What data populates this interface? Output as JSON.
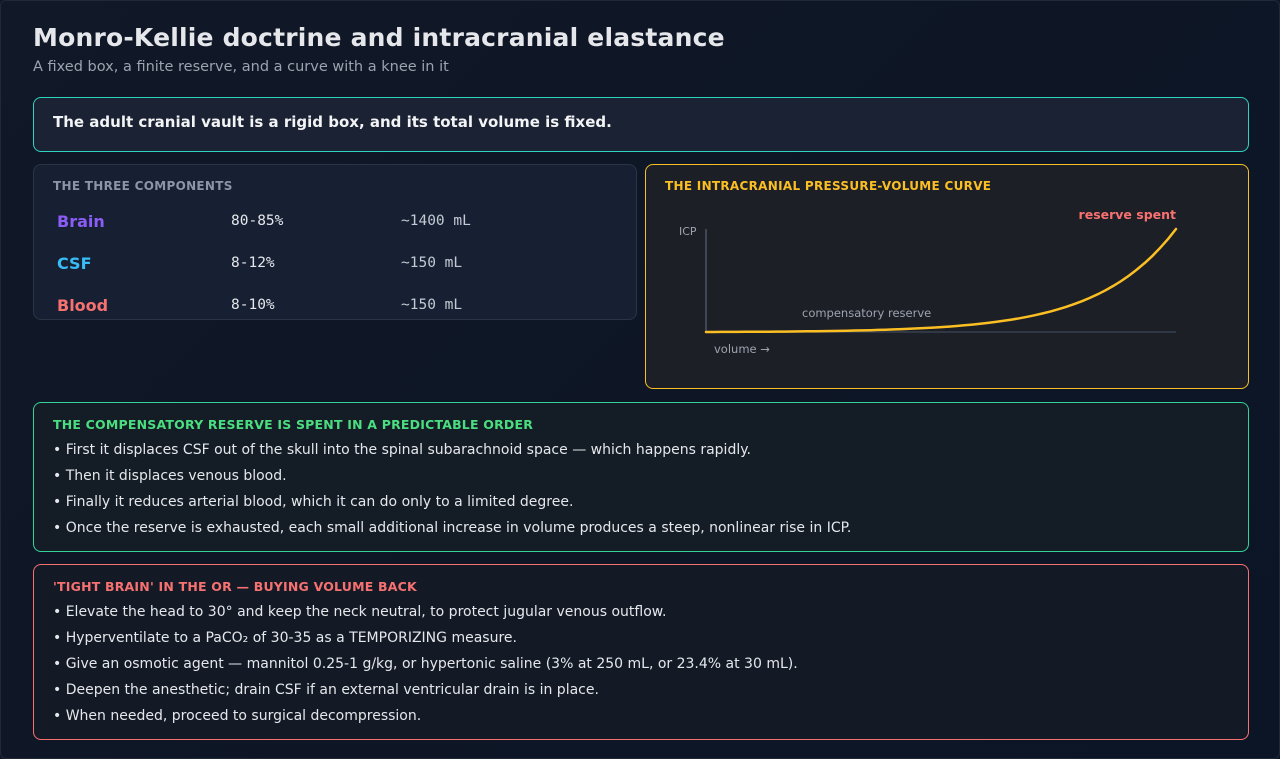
{
  "header": {
    "title": "Monro-Kellie doctrine and intracranial elastance",
    "subtitle": "A fixed box, a finite reserve, and a curve with a knee in it"
  },
  "statement": "The adult cranial vault is a rigid box, and its total volume is fixed.",
  "components": {
    "heading": "THE THREE COMPONENTS",
    "rows": [
      {
        "name": "Brain",
        "percent": "80-85%",
        "volume": "~1400 mL",
        "color": "#8b5cf6"
      },
      {
        "name": "CSF",
        "percent": "8-12%",
        "volume": "~150 mL",
        "color": "#38bdf8"
      },
      {
        "name": "Blood",
        "percent": "8-10%",
        "volume": "~150 mL",
        "color": "#f87171"
      }
    ]
  },
  "curve": {
    "heading": "THE INTRACRANIAL PRESSURE-VOLUME CURVE",
    "y_axis_label": "ICP",
    "x_axis_label": "volume →",
    "annotation_flat": "compensatory reserve",
    "annotation_steep": "reserve spent",
    "line_color": "#fbbf24",
    "steep_color": "#f87171"
  },
  "reserve": {
    "heading": "THE COMPENSATORY RESERVE IS SPENT IN A PREDICTABLE ORDER",
    "items": [
      "• First it displaces CSF out of the skull into the spinal subarachnoid space — which happens rapidly.",
      "• Then it displaces venous blood.",
      "• Finally it reduces arterial blood, which it can do only to a limited degree.",
      "• Once the reserve is exhausted, each small additional increase in volume produces a steep, nonlinear rise in ICP."
    ]
  },
  "tight_brain": {
    "heading": "'TIGHT BRAIN' IN THE OR — BUYING VOLUME BACK",
    "items": [
      "• Elevate the head to 30° and keep the neck neutral, to protect jugular venous outflow.",
      "• Hyperventilate to a PaCO₂ of 30-35 as a TEMPORIZING measure.",
      "• Give an osmotic agent — mannitol 0.25-1 g/kg, or hypertonic saline (3% at 250 mL, or 23.4% at 30 mL).",
      "• Deepen the anesthetic; drain CSF if an external ventricular drain is in place.",
      "• When needed, proceed to surgical decompression."
    ]
  }
}
